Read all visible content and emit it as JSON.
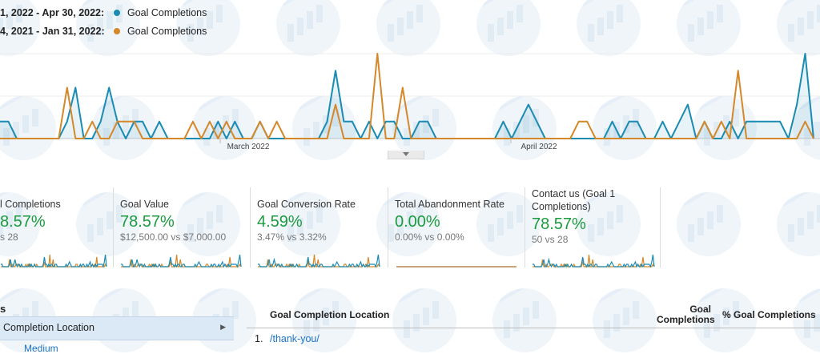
{
  "legend": [
    {
      "range": "1, 2022 - Apr 30, 2022:",
      "label": "Goal Completions",
      "color": "#1a8bb3"
    },
    {
      "range": "4, 2021 - Jan 31, 2022:",
      "label": "Goal Completions",
      "color": "#d4882a"
    }
  ],
  "chart_data": {
    "type": "line",
    "x_labels": [
      "March 2022",
      "April 2022"
    ],
    "series": [
      {
        "name": "Goal Completions",
        "color": "#1a8bb3",
        "values": [
          1,
          1,
          0,
          0,
          0,
          0,
          0,
          0,
          1,
          3,
          0,
          0,
          1,
          3,
          1,
          0,
          1,
          1,
          0,
          1,
          0,
          0,
          0,
          0,
          0,
          0,
          1,
          0,
          1,
          0,
          0,
          1,
          0,
          0,
          0,
          0,
          0,
          0,
          0,
          1,
          4,
          1,
          1,
          0,
          1,
          0,
          1,
          1,
          0,
          0,
          1,
          1,
          0,
          0,
          0,
          0,
          0,
          0,
          0,
          0,
          1,
          0,
          1,
          2,
          1,
          0,
          0,
          0,
          0,
          0,
          0,
          0,
          0,
          1,
          0,
          1,
          1,
          0,
          0,
          1,
          0,
          1,
          2,
          0,
          1,
          0,
          0,
          1,
          0,
          1,
          1,
          1,
          1,
          1,
          0,
          2,
          5,
          0
        ]
      },
      {
        "name": "Goal Completions",
        "color": "#d4882a",
        "values": [
          0,
          0,
          0,
          0,
          0,
          0,
          0,
          0,
          3,
          0,
          0,
          1,
          0,
          0,
          1,
          1,
          1,
          0,
          0,
          0,
          0,
          0,
          0,
          1,
          0,
          1,
          0,
          1,
          0,
          0,
          0,
          1,
          0,
          1,
          0,
          0,
          0,
          0,
          0,
          0,
          2,
          0,
          0,
          0,
          0,
          5,
          0,
          0,
          3,
          0,
          0,
          0,
          0,
          0,
          0,
          0,
          0,
          0,
          0,
          0,
          0,
          0,
          0,
          0,
          0,
          0,
          0,
          0,
          0,
          1,
          1,
          0,
          0,
          0,
          0,
          0,
          0,
          0,
          0,
          0,
          0,
          0,
          0,
          0,
          1,
          0,
          1,
          0,
          4,
          0,
          0,
          0,
          0,
          0,
          0,
          0,
          1,
          0
        ]
      }
    ]
  },
  "scorecards": [
    {
      "title": "l Completions",
      "value": "8.57%",
      "compare": "s 28"
    },
    {
      "title": "Goal Value",
      "value": "78.57%",
      "compare": "$12,500.00 vs $7,000.00"
    },
    {
      "title": "Goal Conversion Rate",
      "value": "4.59%",
      "compare": "3.47% vs 3.32%"
    },
    {
      "title": "Total Abandonment Rate",
      "value": "0.00%",
      "compare": "0.00% vs 0.00%"
    },
    {
      "title": "Contact us (Goal 1 Completions)",
      "value": "78.57%",
      "compare": "50 vs 28"
    }
  ],
  "left_table": {
    "header": "s",
    "selected_row": "Completion Location",
    "next_row": "Medium"
  },
  "goal_table": {
    "col_location": "Goal Completion Location",
    "col_completions_1": "Goal",
    "col_completions_2": "Completions",
    "col_pct": "% Goal Completions",
    "rows": [
      {
        "index": "1.",
        "location": "/thank-you/"
      }
    ]
  }
}
